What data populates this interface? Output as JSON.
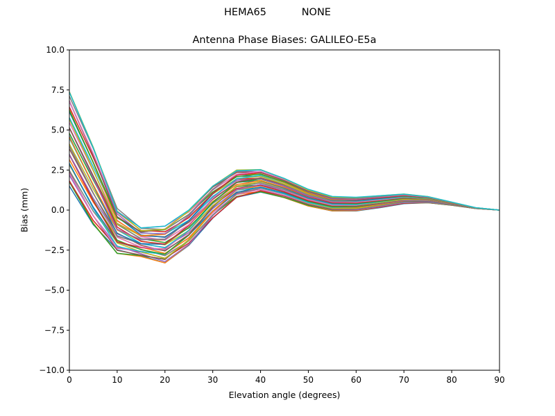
{
  "figure": {
    "suptitle_left": "HEMA65",
    "suptitle_right": "NONE"
  },
  "chart_data": {
    "type": "line",
    "title": "Antenna Phase Biases: GALILEO-E5a",
    "suptitle": "HEMA65           NONE",
    "xlabel": "Elevation angle (degrees)",
    "ylabel": "Bias (mm)",
    "xlim": [
      0,
      90
    ],
    "ylim": [
      -10,
      10
    ],
    "xticks": [
      0,
      10,
      20,
      30,
      40,
      50,
      60,
      70,
      80,
      90
    ],
    "yticks": [
      -10.0,
      -7.5,
      -5.0,
      -2.5,
      0.0,
      2.5,
      5.0,
      7.5,
      10.0
    ],
    "ytick_labels": [
      "−10.0",
      "−7.5",
      "−5.0",
      "−2.5",
      "0.0",
      "2.5",
      "5.0",
      "7.5",
      "10.0"
    ],
    "grid": false,
    "legend": "none",
    "series_count": 40,
    "x": [
      0,
      5,
      10,
      15,
      20,
      25,
      30,
      35,
      40,
      45,
      50,
      55,
      60,
      65,
      70,
      75,
      80,
      85,
      90
    ],
    "envelope_upper": [
      7.4,
      4.0,
      0.1,
      -1.1,
      -1.0,
      0.0,
      1.5,
      2.5,
      2.55,
      2.0,
      1.3,
      0.85,
      0.8,
      0.9,
      1.0,
      0.85,
      0.5,
      0.15,
      0.0
    ],
    "envelope_lower": [
      1.5,
      -1.0,
      -2.7,
      -2.9,
      -3.3,
      -2.2,
      -0.5,
      0.8,
      1.1,
      0.75,
      0.25,
      -0.05,
      -0.05,
      0.15,
      0.4,
      0.45,
      0.3,
      0.1,
      0.0
    ],
    "series_colors": [
      "#1f77b4",
      "#ff7f0e",
      "#2ca02c",
      "#d62728",
      "#9467bd",
      "#8c564b",
      "#e377c2",
      "#7f7f7f",
      "#bcbd22",
      "#17becf"
    ]
  }
}
